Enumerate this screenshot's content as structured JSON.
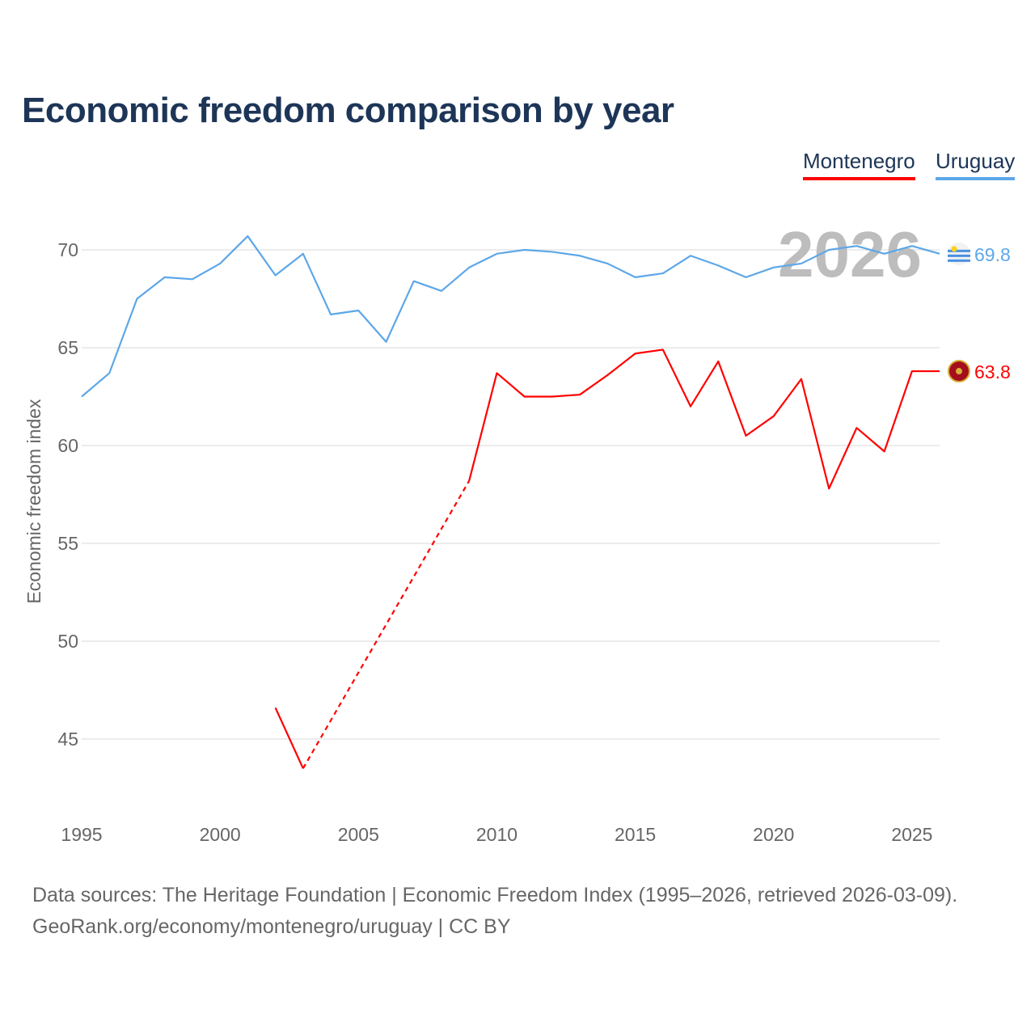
{
  "title": "Economic freedom comparison by year",
  "legend": [
    {
      "label": "Montenegro",
      "color": "#ff0000"
    },
    {
      "label": "Uruguay",
      "color": "#5da7e8"
    }
  ],
  "year_label": "2026",
  "footer": {
    "line1": "Data sources: The Heritage Foundation | Economic Freedom Index (1995–2026, retrieved 2026-03-09).",
    "line2": "GeoRank.org/economy/montenegro/uruguay | CC BY"
  },
  "chart_data": {
    "type": "line",
    "title": "Economic freedom comparison by year",
    "xlabel": "",
    "ylabel": "Economic freedom index",
    "xlim": [
      1995,
      2026
    ],
    "ylim": [
      41.5,
      72
    ],
    "x_ticks": [
      "1995",
      "2000",
      "2005",
      "2010",
      "2015",
      "2020",
      "2025"
    ],
    "y_ticks": [
      "45",
      "50",
      "55",
      "60",
      "65",
      "70"
    ],
    "grid": "horizontal",
    "legend_position": "top-right",
    "series": [
      {
        "name": "Montenegro",
        "color": "#ff0000",
        "end_label": "63.8",
        "points": [
          [
            2002,
            46.6
          ],
          [
            2003,
            43.5
          ],
          [
            2009,
            58.2
          ],
          [
            2010,
            63.7
          ],
          [
            2011,
            62.5
          ],
          [
            2012,
            62.5
          ],
          [
            2013,
            62.6
          ],
          [
            2014,
            63.6
          ],
          [
            2015,
            64.7
          ],
          [
            2016,
            64.9
          ],
          [
            2017,
            62.0
          ],
          [
            2018,
            64.3
          ],
          [
            2019,
            60.5
          ],
          [
            2020,
            61.5
          ],
          [
            2021,
            63.4
          ],
          [
            2022,
            57.8
          ],
          [
            2023,
            60.9
          ],
          [
            2024,
            59.7
          ],
          [
            2025,
            63.8
          ],
          [
            2026,
            63.8
          ]
        ],
        "dashed_gap": [
          2003,
          2009
        ]
      },
      {
        "name": "Uruguay",
        "color": "#5da7e8",
        "end_label": "69.8",
        "points": [
          [
            1995,
            62.5
          ],
          [
            1996,
            63.7
          ],
          [
            1997,
            67.5
          ],
          [
            1998,
            68.6
          ],
          [
            1999,
            68.5
          ],
          [
            2000,
            69.3
          ],
          [
            2001,
            70.7
          ],
          [
            2002,
            68.7
          ],
          [
            2003,
            69.8
          ],
          [
            2004,
            66.7
          ],
          [
            2005,
            66.9
          ],
          [
            2006,
            65.3
          ],
          [
            2007,
            68.4
          ],
          [
            2008,
            67.9
          ],
          [
            2009,
            69.1
          ],
          [
            2010,
            69.8
          ],
          [
            2011,
            70.0
          ],
          [
            2012,
            69.9
          ],
          [
            2013,
            69.7
          ],
          [
            2014,
            69.3
          ],
          [
            2015,
            68.6
          ],
          [
            2016,
            68.8
          ],
          [
            2017,
            69.7
          ],
          [
            2018,
            69.2
          ],
          [
            2019,
            68.6
          ],
          [
            2020,
            69.1
          ],
          [
            2021,
            69.3
          ],
          [
            2022,
            70.0
          ],
          [
            2023,
            70.2
          ],
          [
            2024,
            69.8
          ],
          [
            2025,
            70.2
          ],
          [
            2026,
            69.8
          ]
        ]
      }
    ]
  }
}
